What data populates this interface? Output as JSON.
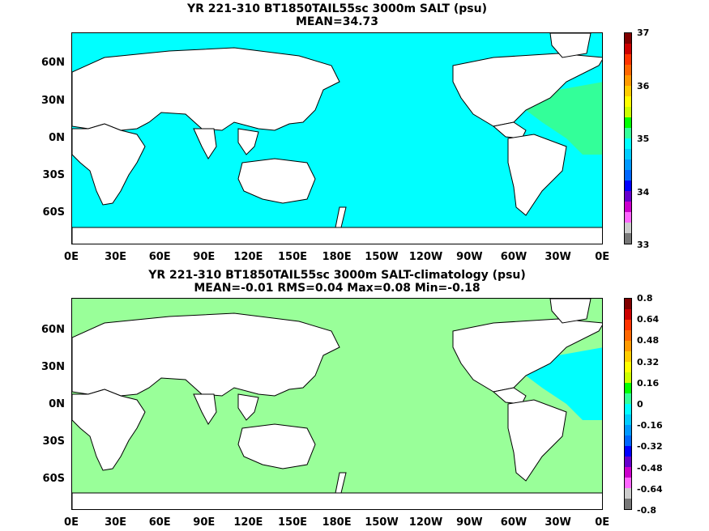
{
  "panels": [
    {
      "title_line1": "YR 221-310 BT1850TAIL55sc 3000m SALT (psu)",
      "title_line2": "MEAN=34.73",
      "fill_color": "#00ffff",
      "anomaly_color": "#33ff99",
      "colorbar": {
        "ticks": [
          "37",
          "36",
          "35",
          "34",
          "33"
        ],
        "colors": [
          "#800000",
          "#cc0000",
          "#ff3300",
          "#ff6600",
          "#ff9900",
          "#ffcc00",
          "#ffff00",
          "#ccff00",
          "#00ff00",
          "#33ff99",
          "#00ffff",
          "#00ccff",
          "#0099ff",
          "#0066ff",
          "#0000ff",
          "#6600cc",
          "#cc00cc",
          "#ff66ff",
          "#cccccc",
          "#777777"
        ]
      }
    },
    {
      "title_line1": "YR 221-310 BT1850TAIL55sc 3000m SALT-climatology (psu)",
      "title_line2": "MEAN=-0.01   RMS=0.04   Max=0.08   Min=-0.18",
      "fill_color": "#99ff99",
      "anomaly_color": "#00ffff",
      "colorbar": {
        "ticks": [
          "0.8",
          "0.64",
          "0.48",
          "0.32",
          "0.16",
          "0",
          "-0.16",
          "-0.32",
          "-0.48",
          "-0.64",
          "-0.8"
        ],
        "colors": [
          "#800000",
          "#cc0000",
          "#ff3300",
          "#ff6600",
          "#ff9900",
          "#ffcc00",
          "#ffff00",
          "#ccff00",
          "#00ff00",
          "#33ff99",
          "#00ffff",
          "#00ccff",
          "#0099ff",
          "#0066ff",
          "#0000ff",
          "#6600cc",
          "#cc00cc",
          "#ff66ff",
          "#cccccc",
          "#777777"
        ]
      }
    }
  ],
  "lat_labels": [
    "60N",
    "30N",
    "0N",
    "30S",
    "60S"
  ],
  "lon_labels": [
    "0E",
    "30E",
    "60E",
    "90E",
    "120E",
    "150E",
    "180E",
    "150W",
    "120W",
    "90W",
    "60W",
    "30W",
    "0E"
  ]
}
